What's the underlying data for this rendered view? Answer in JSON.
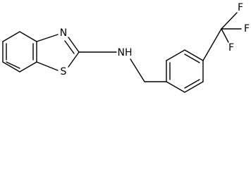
{
  "atom_labels": [
    "N",
    "S",
    "NH",
    "F",
    "F",
    "F"
  ]
}
